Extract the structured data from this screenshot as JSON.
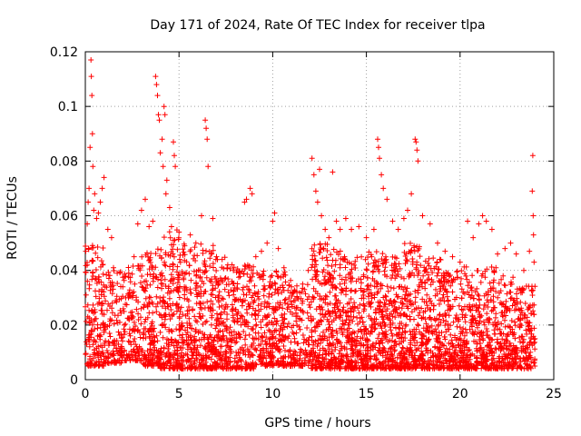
{
  "chart_data": {
    "type": "scatter",
    "title": "Day 171 of 2024, Rate Of TEC Index for receiver tlpa",
    "xlabel": "GPS time / hours",
    "ylabel": "ROTI / TECUs",
    "xlim": [
      0,
      25
    ],
    "ylim": [
      0,
      0.12
    ],
    "xticks": [
      0,
      5,
      10,
      15,
      20,
      25
    ],
    "xtick_labels": [
      "0",
      "5",
      "10",
      "15",
      "20",
      "25"
    ],
    "yticks": [
      0,
      0.02,
      0.04,
      0.06,
      0.08,
      0.1,
      0.12
    ],
    "ytick_labels": [
      "0",
      "0.02",
      "0.04",
      "0.06",
      "0.08",
      "0.1",
      "0.12"
    ],
    "grid": true,
    "marker": "+",
    "color": "#ff0000",
    "series": [
      {
        "name": "ROTI",
        "points": [
          [
            0.1,
            0.057
          ],
          [
            0.15,
            0.065
          ],
          [
            0.2,
            0.07
          ],
          [
            0.25,
            0.085
          ],
          [
            0.3,
            0.117
          ],
          [
            0.32,
            0.111
          ],
          [
            0.35,
            0.104
          ],
          [
            0.38,
            0.09
          ],
          [
            0.4,
            0.078
          ],
          [
            0.45,
            0.062
          ],
          [
            0.5,
            0.068
          ],
          [
            0.6,
            0.059
          ],
          [
            0.7,
            0.061
          ],
          [
            0.8,
            0.065
          ],
          [
            0.9,
            0.07
          ],
          [
            1.0,
            0.074
          ],
          [
            1.2,
            0.055
          ],
          [
            1.4,
            0.052
          ],
          [
            1.5,
            0.041
          ],
          [
            1.7,
            0.039
          ],
          [
            2.0,
            0.034
          ],
          [
            2.3,
            0.03
          ],
          [
            2.6,
            0.045
          ],
          [
            2.8,
            0.057
          ],
          [
            3.0,
            0.062
          ],
          [
            3.2,
            0.066
          ],
          [
            3.4,
            0.056
          ],
          [
            3.6,
            0.058
          ],
          [
            3.75,
            0.111
          ],
          [
            3.8,
            0.108
          ],
          [
            3.85,
            0.104
          ],
          [
            3.9,
            0.097
          ],
          [
            3.95,
            0.095
          ],
          [
            4.0,
            0.083
          ],
          [
            4.1,
            0.088
          ],
          [
            4.15,
            0.078
          ],
          [
            4.2,
            0.1
          ],
          [
            4.25,
            0.097
          ],
          [
            4.3,
            0.068
          ],
          [
            4.35,
            0.073
          ],
          [
            4.5,
            0.063
          ],
          [
            4.6,
            0.056
          ],
          [
            4.7,
            0.087
          ],
          [
            4.75,
            0.082
          ],
          [
            4.8,
            0.078
          ],
          [
            5.0,
            0.054
          ],
          [
            5.3,
            0.049
          ],
          [
            5.6,
            0.053
          ],
          [
            5.9,
            0.05
          ],
          [
            6.2,
            0.06
          ],
          [
            6.4,
            0.095
          ],
          [
            6.45,
            0.092
          ],
          [
            6.5,
            0.088
          ],
          [
            6.55,
            0.078
          ],
          [
            6.8,
            0.059
          ],
          [
            7.0,
            0.045
          ],
          [
            7.3,
            0.044
          ],
          [
            7.6,
            0.042
          ],
          [
            7.9,
            0.04
          ],
          [
            8.2,
            0.039
          ],
          [
            8.5,
            0.065
          ],
          [
            8.6,
            0.066
          ],
          [
            8.8,
            0.07
          ],
          [
            8.9,
            0.068
          ],
          [
            9.1,
            0.045
          ],
          [
            9.4,
            0.047
          ],
          [
            9.7,
            0.05
          ],
          [
            10.0,
            0.058
          ],
          [
            10.1,
            0.061
          ],
          [
            10.3,
            0.048
          ],
          [
            10.6,
            0.041
          ],
          [
            11.0,
            0.034
          ],
          [
            11.3,
            0.03
          ],
          [
            11.6,
            0.035
          ],
          [
            11.9,
            0.04
          ],
          [
            12.1,
            0.081
          ],
          [
            12.2,
            0.075
          ],
          [
            12.3,
            0.069
          ],
          [
            12.4,
            0.065
          ],
          [
            12.5,
            0.077
          ],
          [
            12.6,
            0.06
          ],
          [
            12.8,
            0.055
          ],
          [
            13.0,
            0.052
          ],
          [
            13.2,
            0.076
          ],
          [
            13.4,
            0.058
          ],
          [
            13.6,
            0.055
          ],
          [
            13.9,
            0.059
          ],
          [
            14.2,
            0.055
          ],
          [
            14.6,
            0.056
          ],
          [
            15.0,
            0.052
          ],
          [
            15.4,
            0.055
          ],
          [
            15.6,
            0.088
          ],
          [
            15.65,
            0.085
          ],
          [
            15.7,
            0.081
          ],
          [
            15.8,
            0.075
          ],
          [
            15.9,
            0.07
          ],
          [
            16.1,
            0.066
          ],
          [
            16.4,
            0.058
          ],
          [
            16.7,
            0.055
          ],
          [
            17.0,
            0.059
          ],
          [
            17.2,
            0.062
          ],
          [
            17.4,
            0.068
          ],
          [
            17.6,
            0.088
          ],
          [
            17.65,
            0.087
          ],
          [
            17.7,
            0.084
          ],
          [
            17.75,
            0.08
          ],
          [
            18.0,
            0.06
          ],
          [
            18.4,
            0.057
          ],
          [
            18.8,
            0.05
          ],
          [
            19.2,
            0.047
          ],
          [
            19.6,
            0.045
          ],
          [
            20.0,
            0.043
          ],
          [
            20.4,
            0.058
          ],
          [
            20.7,
            0.052
          ],
          [
            21.0,
            0.057
          ],
          [
            21.2,
            0.06
          ],
          [
            21.4,
            0.058
          ],
          [
            21.7,
            0.055
          ],
          [
            22.0,
            0.046
          ],
          [
            22.4,
            0.048
          ],
          [
            22.7,
            0.05
          ],
          [
            23.0,
            0.046
          ],
          [
            23.4,
            0.04
          ],
          [
            23.7,
            0.047
          ],
          [
            23.85,
            0.069
          ],
          [
            23.88,
            0.082
          ],
          [
            23.9,
            0.06
          ],
          [
            23.92,
            0.053
          ],
          [
            23.95,
            0.043
          ]
        ]
      }
    ],
    "dense_band": {
      "description_values": "bulk distribution per hour as [hour_start, hour_end, y_min, y_max, count]",
      "segments": [
        [
          0.0,
          1.0,
          0.005,
          0.05,
          170
        ],
        [
          1.0,
          2.0,
          0.006,
          0.04,
          130
        ],
        [
          2.0,
          3.0,
          0.007,
          0.042,
          120
        ],
        [
          3.0,
          4.0,
          0.005,
          0.05,
          170
        ],
        [
          4.0,
          5.0,
          0.004,
          0.055,
          200
        ],
        [
          5.0,
          6.0,
          0.004,
          0.05,
          190
        ],
        [
          6.0,
          7.0,
          0.004,
          0.05,
          190
        ],
        [
          7.0,
          8.0,
          0.004,
          0.045,
          170
        ],
        [
          8.0,
          9.0,
          0.004,
          0.042,
          160
        ],
        [
          9.0,
          10.0,
          0.005,
          0.04,
          150
        ],
        [
          10.0,
          11.0,
          0.005,
          0.04,
          150
        ],
        [
          11.0,
          12.0,
          0.005,
          0.035,
          120
        ],
        [
          12.0,
          13.0,
          0.004,
          0.05,
          200
        ],
        [
          13.0,
          14.0,
          0.004,
          0.048,
          200
        ],
        [
          14.0,
          15.0,
          0.004,
          0.045,
          200
        ],
        [
          15.0,
          16.0,
          0.004,
          0.047,
          200
        ],
        [
          16.0,
          17.0,
          0.004,
          0.045,
          200
        ],
        [
          17.0,
          18.0,
          0.004,
          0.05,
          210
        ],
        [
          18.0,
          19.0,
          0.004,
          0.045,
          190
        ],
        [
          19.0,
          20.0,
          0.004,
          0.04,
          170
        ],
        [
          20.0,
          21.0,
          0.004,
          0.042,
          180
        ],
        [
          21.0,
          22.0,
          0.004,
          0.042,
          180
        ],
        [
          22.0,
          23.0,
          0.004,
          0.038,
          170
        ],
        [
          23.0,
          24.0,
          0.004,
          0.035,
          150
        ]
      ]
    }
  }
}
